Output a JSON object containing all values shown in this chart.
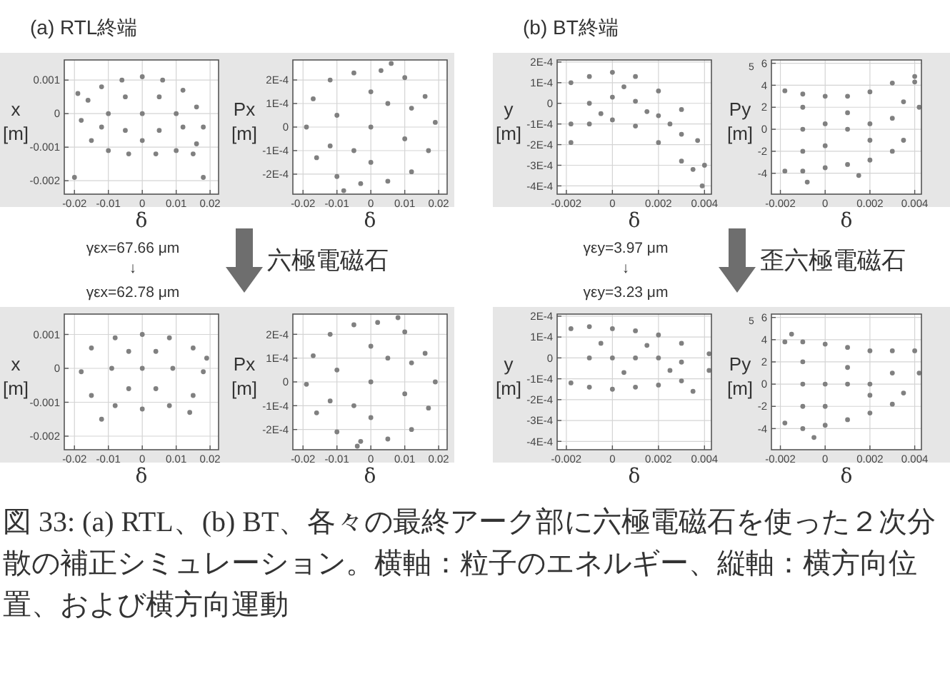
{
  "chart_data": [
    {
      "type": "scatter",
      "title": "(a) RTL終端",
      "xlabel": "δ",
      "ylabel": "x [m]",
      "xlim": [
        -0.023,
        0.0225
      ],
      "ylim": [
        -0.0024,
        0.0016
      ],
      "xticks": [
        -0.02,
        -0.01,
        0,
        0.01,
        0.02
      ],
      "yticks": [
        0.001,
        0,
        -0.001,
        -0.002
      ],
      "grid": true,
      "marker": "circle",
      "color": "#808080",
      "x": [
        -0.018,
        -0.016,
        -0.012,
        -0.006,
        0,
        0.006,
        0.012,
        0.016,
        0.018,
        0.016,
        0.01,
        0.004,
        -0.004,
        -0.01,
        -0.015,
        -0.01,
        0,
        0.01,
        -0.005,
        0.005,
        -0.005,
        0.005,
        0,
        -0.012,
        0.012,
        -0.02,
        0.018,
        0.015,
        -0.019
      ],
      "values": [
        -0.0002,
        0.0004,
        0.0008,
        0.001,
        0.0011,
        0.001,
        0.0007,
        0.0002,
        -0.0004,
        -0.0009,
        -0.0011,
        -0.0012,
        -0.0012,
        -0.0011,
        -0.0008,
        0,
        0,
        0,
        -0.0005,
        -0.0005,
        0.0005,
        0.0005,
        -0.0008,
        -0.0004,
        -0.0004,
        -0.0019,
        -0.0019,
        -0.0012,
        0.0006
      ]
    },
    {
      "type": "scatter",
      "xlabel": "δ",
      "ylabel": "Px [m]",
      "xlim": [
        -0.023,
        0.0225
      ],
      "ylim": [
        -0.000285,
        0.000285
      ],
      "xticks": [
        -0.02,
        -0.01,
        0,
        0.01,
        0.02
      ],
      "yticks": [
        {
          "value": 0.0002,
          "label": "2E-4"
        },
        {
          "value": 0.0001,
          "label": "1E-4"
        },
        0,
        {
          "value": -0.0001,
          "label": "-1E-4"
        },
        {
          "value": -0.0002,
          "label": "-2E-4"
        }
      ],
      "grid": true,
      "marker": "circle",
      "color": "#808080",
      "x": [
        -0.019,
        -0.017,
        -0.012,
        -0.005,
        0.003,
        0.01,
        0.016,
        0.019,
        0.017,
        0.012,
        0.005,
        -0.003,
        -0.01,
        -0.016,
        0,
        -0.01,
        0.01,
        -0.005,
        0.005,
        0,
        0,
        -0.012,
        0.012,
        0.006,
        -0.008
      ],
      "values": [
        0,
        0.00012,
        0.0002,
        0.00023,
        0.00024,
        0.00021,
        0.00013,
        2e-05,
        -0.0001,
        -0.00019,
        -0.00023,
        -0.00024,
        -0.00021,
        -0.00013,
        0,
        5e-05,
        -5e-05,
        -0.0001,
        0.0001,
        -0.00015,
        0.00015,
        -8e-05,
        8e-05,
        0.00027,
        -0.00027
      ]
    },
    {
      "type": "scatter",
      "title": "(b) BT終端",
      "xlabel": "δ",
      "ylabel": "y [m]",
      "xlim": [
        -0.0024,
        0.0043
      ],
      "ylim": [
        -0.00044,
        0.00021
      ],
      "xticks": [
        -0.002,
        0,
        0.002,
        0.004
      ],
      "yticks": [
        {
          "value": 0.0002,
          "label": "2E-4"
        },
        {
          "value": 0.0001,
          "label": "1E-4"
        },
        0,
        {
          "value": -0.0001,
          "label": "-1E-4"
        },
        {
          "value": -0.0002,
          "label": "-2E-4"
        },
        {
          "value": -0.0003,
          "label": "-3E-4"
        },
        {
          "value": -0.0004,
          "label": "-4E-4"
        }
      ],
      "grid": true,
      "marker": "circle",
      "color": "#808080",
      "x": [
        -0.0018,
        -0.0018,
        -0.001,
        0,
        0.001,
        0.002,
        0.003,
        0.0037,
        0.004,
        0.0035,
        0.003,
        0.002,
        0.001,
        0,
        -0.001,
        -0.001,
        0,
        0.001,
        0.002,
        0.003,
        -0.0005,
        0.0005,
        0.0015,
        0.0025,
        -0.0018,
        0.0039
      ],
      "values": [
        -0.0001,
        0.0001,
        0.00013,
        0.00015,
        0.00013,
        6e-05,
        -3e-05,
        -0.00018,
        -0.0003,
        -0.00032,
        -0.00028,
        -0.00019,
        -0.00011,
        -8e-05,
        -0.0001,
        0,
        3e-05,
        1e-05,
        -6e-05,
        -0.00015,
        -5e-05,
        8e-05,
        -4e-05,
        -0.0001,
        -0.00019,
        -0.0004
      ]
    },
    {
      "type": "scatter",
      "xlabel": "δ",
      "ylabel": "Py [m]",
      "xlim": [
        -0.0024,
        0.0043
      ],
      "ylim": [
        -5.9,
        6.3
      ],
      "xticks": [
        -0.002,
        0,
        0.002,
        0.004
      ],
      "yticks": [
        6,
        4,
        2,
        0,
        -2,
        -4
      ],
      "grid": true,
      "marker": "circle",
      "color": "#808080",
      "annotations": [
        "5"
      ],
      "x": [
        -0.0018,
        -0.0018,
        -0.001,
        0,
        0.001,
        0.002,
        0.003,
        0.004,
        0.0042,
        0.0035,
        0.003,
        0.002,
        0.001,
        0,
        -0.001,
        -0.001,
        0,
        0.001,
        0.002,
        0.003,
        -0.001,
        0,
        0.001,
        0.002,
        -0.001,
        0.0035,
        -0.0008,
        0.0015,
        0.004
      ],
      "values": [
        -3.8,
        3.5,
        3.2,
        3.0,
        3.0,
        3.4,
        4.2,
        4.3,
        2.0,
        -1.0,
        -2.0,
        -2.8,
        -3.2,
        -3.5,
        -3.8,
        0,
        0.5,
        0,
        0.5,
        1,
        -2,
        -1.5,
        1.5,
        -1,
        2,
        2.5,
        -4.8,
        -4.2,
        4.8
      ]
    },
    {
      "type": "scatter",
      "xlabel": "δ",
      "ylabel": "x [m]",
      "xlim": [
        -0.023,
        0.0225
      ],
      "ylim": [
        -0.0024,
        0.0016
      ],
      "xticks": [
        -0.02,
        -0.01,
        0,
        0.01,
        0.02
      ],
      "yticks": [
        0.001,
        0,
        -0.001,
        -0.002
      ],
      "grid": true,
      "marker": "circle",
      "color": "#808080",
      "annotations": [
        "γεx=67.66 μm",
        "↓",
        "γεx=62.78 μm",
        "六極電磁石"
      ],
      "x": [
        -0.018,
        -0.015,
        -0.008,
        0,
        0.008,
        0.015,
        0.018,
        0.015,
        0.008,
        0,
        -0.008,
        -0.015,
        0,
        -0.009,
        0.009,
        -0.004,
        0.004,
        -0.004,
        0.004,
        -0.012,
        0.014,
        0.019
      ],
      "values": [
        -0.0001,
        0.0006,
        0.0009,
        0.001,
        0.0009,
        0.0006,
        -0.0001,
        -0.0008,
        -0.0011,
        -0.0012,
        -0.0011,
        -0.0008,
        0,
        0,
        0,
        0.0005,
        0.0005,
        -0.0006,
        -0.0006,
        -0.0015,
        -0.0013,
        0.0003
      ]
    },
    {
      "type": "scatter",
      "xlabel": "δ",
      "ylabel": "Px [m]",
      "xlim": [
        -0.023,
        0.0225
      ],
      "ylim": [
        -0.000285,
        0.000285
      ],
      "xticks": [
        -0.02,
        -0.01,
        0,
        0.01,
        0.02
      ],
      "yticks": [
        {
          "value": 0.0002,
          "label": "2E-4"
        },
        {
          "value": 0.0001,
          "label": "1E-4"
        },
        0,
        {
          "value": -0.0001,
          "label": "-1E-4"
        },
        {
          "value": -0.0002,
          "label": "-2E-4"
        }
      ],
      "grid": true,
      "marker": "circle",
      "color": "#808080",
      "x": [
        -0.019,
        -0.017,
        -0.012,
        -0.005,
        0.002,
        0.01,
        0.016,
        0.019,
        0.017,
        0.012,
        0.005,
        -0.003,
        -0.01,
        -0.016,
        0,
        -0.01,
        0.01,
        -0.005,
        0.005,
        0,
        0,
        -0.012,
        0.012,
        0.008,
        -0.004
      ],
      "values": [
        -1e-05,
        0.00011,
        0.0002,
        0.00024,
        0.00025,
        0.00021,
        0.00012,
        0,
        -0.00011,
        -0.0002,
        -0.00024,
        -0.00025,
        -0.00021,
        -0.00013,
        0,
        5e-05,
        -5e-05,
        -0.0001,
        0.0001,
        -0.00015,
        0.00015,
        -8e-05,
        8e-05,
        0.00027,
        -0.00027
      ]
    },
    {
      "type": "scatter",
      "title": null,
      "xlabel": "δ",
      "ylabel": "y [m]",
      "xlim": [
        -0.0024,
        0.0043
      ],
      "ylim": [
        -0.00044,
        0.00021
      ],
      "xticks": [
        -0.002,
        0,
        0.002,
        0.004
      ],
      "yticks": [
        {
          "value": 0.0002,
          "label": "2E-4"
        },
        {
          "value": 0.0001,
          "label": "1E-4"
        },
        0,
        {
          "value": -0.0001,
          "label": "-1E-4"
        },
        {
          "value": -0.0002,
          "label": "-2E-4"
        },
        {
          "value": -0.0003,
          "label": "-3E-4"
        },
        {
          "value": -0.0004,
          "label": "-4E-4"
        }
      ],
      "grid": true,
      "marker": "circle",
      "color": "#808080",
      "annotations": [
        "γεy=3.97 μm",
        "↓",
        "γεy=3.23 μm",
        "歪六極電磁石"
      ],
      "x": [
        -0.0018,
        -0.0018,
        -0.001,
        0,
        0.001,
        0.002,
        0.003,
        0.0042,
        0.0042,
        0.003,
        0.002,
        0.001,
        0,
        -0.001,
        -0.001,
        0,
        0.001,
        0.002,
        0.003,
        -0.0005,
        0.0005,
        0.0015,
        0.0025,
        0.0035
      ],
      "values": [
        -0.00012,
        0.00014,
        0.00015,
        0.00014,
        0.00013,
        0.00011,
        7e-05,
        2e-05,
        -6e-05,
        -0.00011,
        -0.00013,
        -0.00014,
        -0.00015,
        -0.00014,
        0,
        0,
        0,
        0,
        -2e-05,
        7e-05,
        -7e-05,
        6e-05,
        -6e-05,
        -0.00016
      ]
    },
    {
      "type": "scatter",
      "xlabel": "δ",
      "ylabel": "Py [m]",
      "xlim": [
        -0.0024,
        0.0043
      ],
      "ylim": [
        -5.9,
        6.3
      ],
      "xticks": [
        -0.002,
        0,
        0.002,
        0.004
      ],
      "yticks": [
        6,
        4,
        2,
        0,
        -2,
        -4
      ],
      "grid": true,
      "marker": "circle",
      "color": "#808080",
      "annotations": [
        "5",
        "図 33: (a) RTL、(b) BT、各々の最終アーク部に六極電磁石を使った２次分散の補正シミュレーション。横軸：粒子のエネルギー、縦軸：横方向位置、および横方向運動"
      ],
      "x": [
        -0.0018,
        -0.0018,
        -0.001,
        0,
        0.001,
        0.002,
        0.003,
        0.004,
        0.0042,
        0.0035,
        0.003,
        0.002,
        0.001,
        0,
        -0.001,
        -0.001,
        0,
        0.001,
        0.002,
        0.003,
        -0.001,
        0,
        0.001,
        0.002,
        -0.001,
        -0.0005,
        -0.0015
      ],
      "values": [
        -3.5,
        3.8,
        3.8,
        3.6,
        3.3,
        3.0,
        3.0,
        3.0,
        1.0,
        -0.8,
        -1.8,
        -2.6,
        -3.2,
        -3.7,
        -4.0,
        0,
        0,
        0,
        0,
        1,
        2,
        -2,
        1.5,
        -1,
        -2,
        -4.8,
        4.5
      ]
    }
  ]
}
